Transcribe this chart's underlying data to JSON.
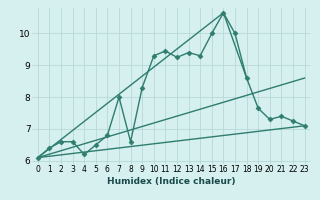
{
  "xlabel": "Humidex (Indice chaleur)",
  "bg_color": "#d6efef",
  "line_color": "#2e7d6e",
  "grid_color": "#b8d8d8",
  "xlim": [
    -0.5,
    23.5
  ],
  "ylim": [
    5.9,
    10.8
  ],
  "yticks": [
    6,
    7,
    8,
    9,
    10
  ],
  "xticks": [
    0,
    1,
    2,
    3,
    4,
    5,
    6,
    7,
    8,
    9,
    10,
    11,
    12,
    13,
    14,
    15,
    16,
    17,
    18,
    19,
    20,
    21,
    22,
    23
  ],
  "series": [
    {
      "x": [
        0,
        1,
        2,
        3,
        4,
        5,
        6,
        7,
        8,
        9,
        10,
        11,
        12,
        13,
        14,
        15,
        16,
        17,
        18,
        19,
        20,
        21,
        22,
        23
      ],
      "y": [
        6.1,
        6.4,
        6.6,
        6.6,
        6.2,
        6.5,
        6.8,
        8.0,
        6.6,
        8.3,
        9.3,
        9.45,
        9.25,
        9.4,
        9.3,
        10.0,
        10.65,
        10.0,
        8.6,
        7.65,
        7.3,
        7.4,
        7.25,
        7.1
      ],
      "marker": "D",
      "markersize": 2.5,
      "linewidth": 1.0,
      "with_marker": true
    },
    {
      "x": [
        0,
        23
      ],
      "y": [
        6.1,
        8.6
      ],
      "linewidth": 1.0,
      "with_marker": false
    },
    {
      "x": [
        0,
        23
      ],
      "y": [
        6.1,
        7.1
      ],
      "linewidth": 1.0,
      "with_marker": false
    },
    {
      "x": [
        0,
        16,
        18
      ],
      "y": [
        6.1,
        10.65,
        8.6
      ],
      "linewidth": 1.0,
      "with_marker": false
    }
  ]
}
